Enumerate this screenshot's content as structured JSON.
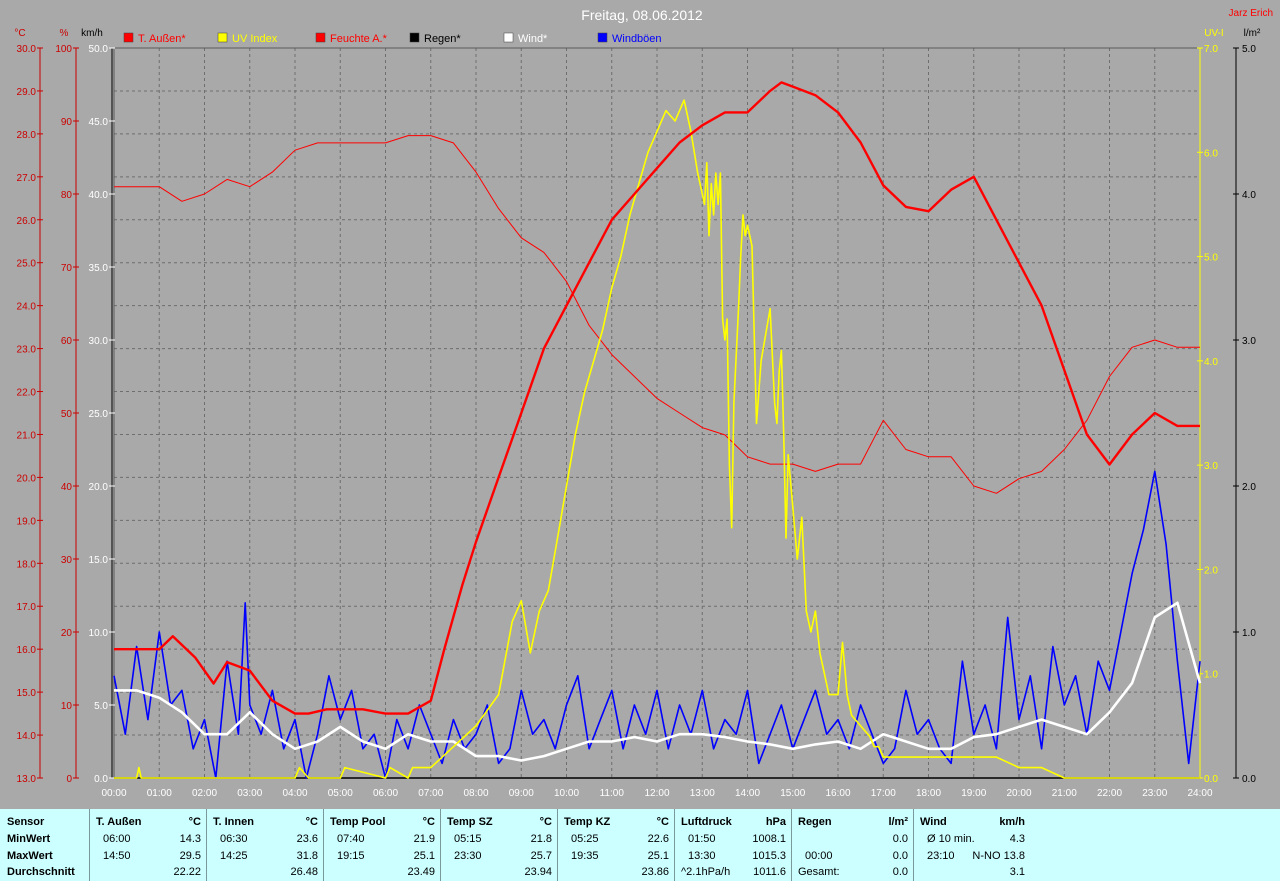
{
  "chart_data": {
    "type": "line",
    "title": "Freitag, 08.06.2012",
    "author": "Jarz Erich",
    "x_ticks": [
      "00:00",
      "01:00",
      "02:00",
      "03:00",
      "04:00",
      "05:00",
      "06:00",
      "07:00",
      "08:00",
      "09:00",
      "10:00",
      "11:00",
      "12:00",
      "13:00",
      "14:00",
      "15:00",
      "16:00",
      "17:00",
      "18:00",
      "19:00",
      "20:00",
      "21:00",
      "22:00",
      "23:00",
      "24:00"
    ],
    "axes": {
      "temp": {
        "unit": "°C",
        "min": 13,
        "max": 30,
        "ticks": [
          "13.0",
          "14.0",
          "15.0",
          "16.0",
          "17.0",
          "18.0",
          "19.0",
          "20.0",
          "21.0",
          "22.0",
          "23.0",
          "24.0",
          "25.0",
          "26.0",
          "27.0",
          "28.0",
          "29.0",
          "30.0"
        ],
        "color": "#cc0000"
      },
      "humidity": {
        "unit": "%",
        "min": 0,
        "max": 100,
        "ticks": [
          "0",
          "10",
          "20",
          "30",
          "40",
          "50",
          "60",
          "70",
          "80",
          "90",
          "100"
        ],
        "color": "#cc0000"
      },
      "wind": {
        "unit": "km/h",
        "min": 0,
        "max": 50,
        "ticks": [
          "0.0",
          "5.0",
          "10.0",
          "15.0",
          "20.0",
          "25.0",
          "30.0",
          "35.0",
          "40.0",
          "45.0",
          "50.0"
        ],
        "color": "#ffffff"
      },
      "uv": {
        "unit": "UV-I",
        "min": 0,
        "max": 7,
        "ticks": [
          "0.0",
          "1.0",
          "2.0",
          "3.0",
          "4.0",
          "5.0",
          "6.0",
          "7.0"
        ],
        "color": "#ffff00"
      },
      "rain": {
        "unit": "l/m²",
        "min": 0,
        "max": 5,
        "ticks": [
          "0.0",
          "1.0",
          "2.0",
          "3.0",
          "4.0",
          "5.0"
        ],
        "color": "#000000"
      }
    },
    "legend": [
      {
        "label": "T. Außen*",
        "color": "#ff0000"
      },
      {
        "label": "UV Index",
        "color": "#ffff00"
      },
      {
        "label": "Feuchte A.*",
        "color": "#ff0000"
      },
      {
        "label": "Regen*",
        "color": "#000000"
      },
      {
        "label": "Wind*",
        "color": "#ffffff"
      },
      {
        "label": "Windböen",
        "color": "#0000ff"
      }
    ],
    "series": [
      {
        "name": "T. Außen*",
        "axis": "temp",
        "color": "#ff0000",
        "x": [
          0,
          0.5,
          1,
          1.3,
          1.8,
          2.2,
          2.5,
          3,
          3.5,
          4,
          4.3,
          4.7,
          5,
          5.5,
          6,
          6.5,
          7,
          7.3,
          7.7,
          8,
          8.5,
          9,
          9.5,
          10,
          10.5,
          11,
          11.5,
          12,
          12.5,
          13,
          13.5,
          14,
          14.5,
          14.75,
          15,
          15.5,
          16,
          16.5,
          17,
          17.5,
          18,
          18.5,
          19,
          19.5,
          20,
          20.5,
          21,
          21.5,
          22,
          22.5,
          23,
          23.5,
          24
        ],
        "y": [
          16.0,
          16.0,
          16.0,
          16.3,
          15.8,
          15.2,
          15.7,
          15.5,
          14.8,
          14.5,
          14.5,
          14.6,
          14.6,
          14.6,
          14.5,
          14.5,
          14.8,
          16.0,
          17.5,
          18.5,
          20.0,
          21.5,
          23.0,
          24.0,
          25.0,
          26.0,
          26.6,
          27.2,
          27.8,
          28.2,
          28.5,
          28.5,
          29.0,
          29.2,
          29.1,
          28.9,
          28.5,
          27.8,
          26.8,
          26.3,
          26.2,
          26.7,
          27.0,
          26.0,
          25.0,
          24.0,
          22.5,
          21.0,
          20.3,
          21.0,
          21.5,
          21.2,
          21.2
        ]
      },
      {
        "name": "Feuchte A.*",
        "axis": "humidity",
        "color": "#ff0000",
        "x": [
          0,
          1,
          1.5,
          2,
          2.5,
          3,
          3.5,
          4,
          4.5,
          5,
          6,
          6.5,
          7,
          7.5,
          8,
          8.5,
          9,
          9.5,
          10,
          10.5,
          11,
          11.5,
          12,
          12.5,
          13,
          13.5,
          14,
          14.5,
          15,
          15.5,
          16,
          16.5,
          17,
          17.5,
          18,
          18.5,
          19,
          19.5,
          20,
          20.5,
          21,
          21.5,
          22,
          22.5,
          23,
          23.5,
          24
        ],
        "y": [
          81,
          81,
          79,
          80,
          82,
          81,
          83,
          86,
          87,
          87,
          87,
          88,
          88,
          87,
          83,
          78,
          74,
          72,
          68,
          62,
          58,
          55,
          52,
          50,
          48,
          47,
          44,
          43,
          43,
          42,
          43,
          43,
          49,
          45,
          44,
          44,
          40,
          39,
          41,
          42,
          45,
          49,
          55,
          59,
          60,
          59,
          59
        ]
      },
      {
        "name": "UV Index",
        "axis": "uv",
        "color": "#ffff00",
        "x": [
          0,
          0.5,
          0.55,
          0.6,
          4,
          4.1,
          4.3,
          5,
          5.1,
          6,
          6.1,
          6.5,
          6.6,
          7,
          7.5,
          8,
          8.5,
          8.8,
          9,
          9.2,
          9.4,
          9.6,
          9.8,
          10,
          10.2,
          10.4,
          10.6,
          10.8,
          11,
          11.2,
          11.4,
          11.6,
          11.8,
          12,
          12.2,
          12.4,
          12.6,
          12.75,
          12.9,
          13.0,
          13.05,
          13.1,
          13.15,
          13.2,
          13.25,
          13.3,
          13.35,
          13.4,
          13.45,
          13.5,
          13.55,
          13.6,
          13.65,
          13.7,
          13.8,
          13.85,
          13.9,
          13.95,
          14,
          14.1,
          14.2,
          14.3,
          14.5,
          14.6,
          14.65,
          14.7,
          14.75,
          14.8,
          14.85,
          14.9,
          15,
          15.1,
          15.2,
          15.3,
          15.4,
          15.5,
          15.6,
          15.7,
          15.8,
          16,
          16.1,
          16.2,
          16.3,
          16.5,
          16.7,
          16.8,
          16.9,
          17,
          17.2,
          17.5,
          18,
          18.5,
          19,
          19.5,
          20,
          20.5,
          21,
          22,
          23,
          24
        ],
        "y": [
          0,
          0,
          0.1,
          0,
          0,
          0.1,
          0,
          0,
          0.1,
          0,
          0.1,
          0,
          0.1,
          0.1,
          0.3,
          0.5,
          0.8,
          1.5,
          1.7,
          1.2,
          1.6,
          1.8,
          2.3,
          2.8,
          3.3,
          3.7,
          4.0,
          4.3,
          4.7,
          5.0,
          5.4,
          5.7,
          6.0,
          6.2,
          6.4,
          6.3,
          6.5,
          6.2,
          5.8,
          5.6,
          5.5,
          5.9,
          5.2,
          5.7,
          5.4,
          5.8,
          5.5,
          5.8,
          4.4,
          4.2,
          4.4,
          3.0,
          2.4,
          3.6,
          4.5,
          5.0,
          5.4,
          5.2,
          5.3,
          5.1,
          3.4,
          4.0,
          4.5,
          3.6,
          3.4,
          3.9,
          4.1,
          3.3,
          2.3,
          3.1,
          2.6,
          2.1,
          2.5,
          1.6,
          1.4,
          1.6,
          1.2,
          1.0,
          0.8,
          0.8,
          1.3,
          0.8,
          0.6,
          0.5,
          0.4,
          0.3,
          0.3,
          0.2,
          0.2,
          0.2,
          0.2,
          0.2,
          0.2,
          0.2,
          0.1,
          0.1,
          0,
          0,
          0,
          0
        ]
      },
      {
        "name": "Regen*",
        "axis": "rain",
        "color": "#000000",
        "x": [
          0,
          24
        ],
        "y": [
          0,
          0
        ]
      },
      {
        "name": "Wind*",
        "axis": "wind",
        "color": "#ffffff",
        "x": [
          0,
          0.5,
          1,
          1.5,
          2,
          2.5,
          3,
          3.5,
          4,
          4.5,
          5,
          5.5,
          6,
          6.5,
          7,
          7.5,
          8,
          8.5,
          9,
          9.5,
          10,
          10.5,
          11,
          11.5,
          12,
          12.5,
          13,
          13.5,
          14,
          14.5,
          15,
          15.5,
          16,
          16.5,
          17,
          17.5,
          18,
          18.5,
          19,
          19.5,
          20,
          20.5,
          21,
          21.5,
          22,
          22.5,
          23,
          23.5,
          24
        ],
        "y": [
          6.0,
          6.0,
          5.5,
          4.5,
          3.0,
          3.0,
          4.5,
          3.0,
          2.0,
          2.5,
          3.5,
          2.5,
          2.0,
          3.0,
          2.5,
          2.5,
          1.5,
          1.5,
          1.2,
          1.5,
          2.0,
          2.5,
          2.5,
          2.8,
          2.5,
          3.0,
          3.0,
          2.8,
          2.5,
          2.3,
          2.0,
          2.3,
          2.5,
          2.0,
          3.0,
          2.5,
          2.0,
          2.0,
          2.8,
          3.0,
          3.5,
          4.0,
          3.5,
          3.0,
          4.5,
          6.5,
          11.0,
          12.0,
          6.5
        ]
      },
      {
        "name": "Windböen",
        "axis": "wind",
        "color": "#0000ff",
        "x": [
          0,
          0.25,
          0.5,
          0.75,
          1,
          1.25,
          1.5,
          1.75,
          2,
          2.25,
          2.5,
          2.75,
          2.9,
          3,
          3.25,
          3.5,
          3.75,
          4,
          4.25,
          4.5,
          4.75,
          5,
          5.25,
          5.5,
          5.75,
          6,
          6.25,
          6.5,
          6.75,
          7,
          7.25,
          7.5,
          7.75,
          8,
          8.25,
          8.5,
          8.75,
          9,
          9.25,
          9.5,
          9.75,
          10,
          10.25,
          10.5,
          10.75,
          11,
          11.25,
          11.5,
          11.75,
          12,
          12.25,
          12.5,
          12.75,
          13,
          13.25,
          13.5,
          13.75,
          14,
          14.25,
          14.5,
          14.75,
          15,
          15.25,
          15.5,
          15.75,
          16,
          16.25,
          16.5,
          16.75,
          17,
          17.25,
          17.5,
          17.75,
          18,
          18.25,
          18.5,
          18.75,
          19,
          19.25,
          19.5,
          19.75,
          20,
          20.25,
          20.5,
          20.75,
          21,
          21.25,
          21.5,
          21.75,
          22,
          22.25,
          22.5,
          22.75,
          23,
          23.25,
          23.5,
          23.75,
          24
        ],
        "y": [
          7,
          3,
          9,
          4,
          10,
          5,
          6,
          2,
          4,
          0,
          8,
          3,
          12,
          5,
          3,
          6,
          2,
          4,
          0,
          3,
          7,
          4,
          6,
          2,
          3,
          0,
          4,
          2,
          5,
          3,
          1,
          4,
          2,
          3,
          5,
          1,
          2,
          6,
          3,
          4,
          2,
          5,
          7,
          2,
          4,
          6,
          2,
          5,
          3,
          6,
          2,
          5,
          3,
          6,
          2,
          4,
          3,
          6,
          1,
          3,
          5,
          2,
          4,
          6,
          3,
          4,
          2,
          5,
          3,
          1,
          2,
          6,
          3,
          4,
          2,
          1,
          8,
          3,
          5,
          2,
          11,
          4,
          7,
          2,
          9,
          5,
          7,
          3,
          8,
          6,
          10,
          14,
          17,
          21,
          16,
          8,
          1,
          8
        ]
      }
    ]
  },
  "stats": {
    "row_labels": [
      "Sensor",
      "MinWert",
      "MaxWert",
      "Durchschnitt"
    ],
    "columns": [
      {
        "name": "T. Außen",
        "unit": "°C",
        "min_time": "06:00",
        "min": "14.3",
        "max_time": "14:50",
        "max": "29.5",
        "avg": "22.22"
      },
      {
        "name": "T. Innen",
        "unit": "°C",
        "min_time": "06:30",
        "min": "23.6",
        "max_time": "14:25",
        "max": "31.8",
        "avg": "26.48"
      },
      {
        "name": "Temp Pool",
        "unit": "°C",
        "min_time": "07:40",
        "min": "21.9",
        "max_time": "19:15",
        "max": "25.1",
        "avg": "23.49"
      },
      {
        "name": "Temp SZ",
        "unit": "°C",
        "min_time": "05:15",
        "min": "21.8",
        "max_time": "23:30",
        "max": "25.7",
        "avg": "23.94"
      },
      {
        "name": "Temp KZ",
        "unit": "°C",
        "min_time": "05:25",
        "min": "22.6",
        "max_time": "19:35",
        "max": "25.1",
        "avg": "23.86"
      },
      {
        "name": "Luftdruck",
        "unit": "hPa",
        "min_time": "01:50",
        "min": "1008.1",
        "max_time": "13:30",
        "max": "1015.3",
        "avg_label": "^2.1hPa/h",
        "avg": "1011.6"
      },
      {
        "name": "Regen",
        "unit": "l/m²",
        "min_time": "",
        "min": "",
        "max_time": "00:00",
        "max": "0.0",
        "avg_label": "Gesamt:",
        "avg": "0.0",
        "extra": "0.0"
      },
      {
        "name": "Wind",
        "unit": "km/h",
        "min_time": "Ø 10 min.",
        "min": "4.3",
        "max_time": "23:10",
        "max": "N-NO 13.8",
        "avg": "3.1"
      }
    ]
  }
}
